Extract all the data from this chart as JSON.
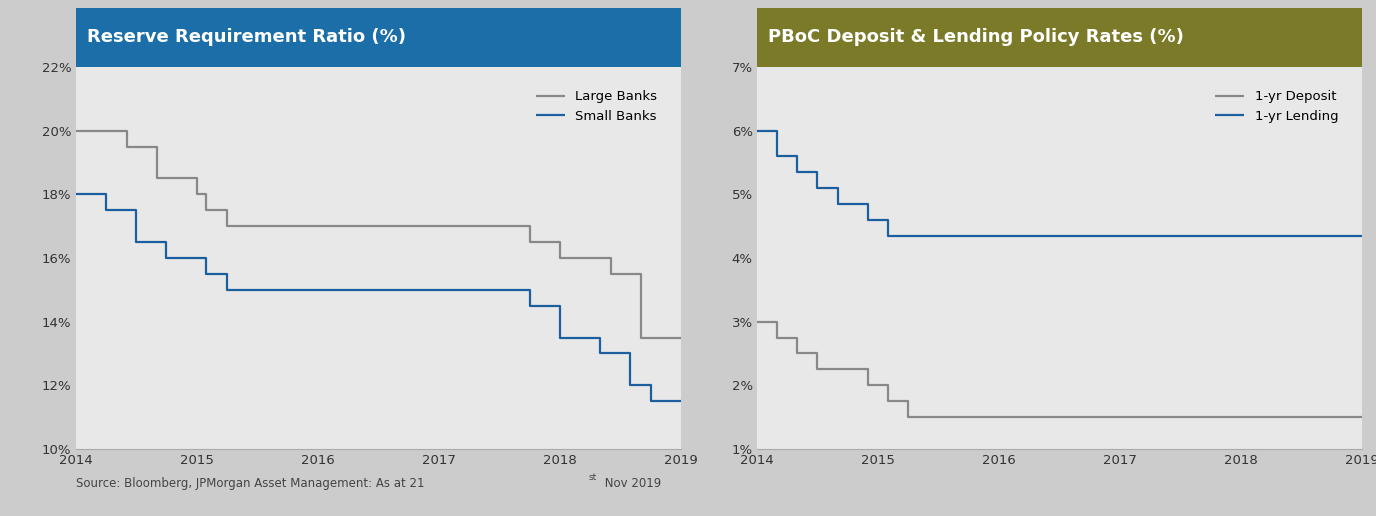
{
  "left_title": "Reserve Requirement Ratio (%)",
  "right_title": "PBoC Deposit & Lending Policy Rates (%)",
  "left_title_bg": "#1b6ea8",
  "right_title_bg": "#7a7a28",
  "title_text_color": "#ffffff",
  "plot_bg": "#e8e8e8",
  "fig_bg": "#cccccc",
  "source_text": "Source: Bloomberg, JPMorgan Asset Management: As at 21",
  "source_superscript": "st",
  "source_end": " Nov 2019",
  "large_banks_x": [
    2014.0,
    2014.42,
    2014.42,
    2014.67,
    2014.67,
    2015.0,
    2015.0,
    2015.08,
    2015.08,
    2015.25,
    2015.25,
    2015.5,
    2015.5,
    2017.75,
    2017.75,
    2018.0,
    2018.0,
    2018.42,
    2018.42,
    2018.67,
    2018.67,
    2019.08
  ],
  "large_banks_y": [
    20.0,
    20.0,
    19.5,
    19.5,
    18.5,
    18.5,
    18.0,
    18.0,
    17.5,
    17.5,
    17.0,
    17.0,
    17.0,
    17.0,
    16.5,
    16.5,
    16.0,
    16.0,
    15.5,
    15.5,
    13.5,
    13.5
  ],
  "small_banks_x": [
    2014.0,
    2014.25,
    2014.25,
    2014.5,
    2014.5,
    2014.75,
    2014.75,
    2015.08,
    2015.08,
    2015.25,
    2015.25,
    2015.5,
    2015.5,
    2017.75,
    2017.75,
    2018.0,
    2018.0,
    2018.33,
    2018.33,
    2018.58,
    2018.58,
    2018.75,
    2018.75,
    2018.92,
    2018.92,
    2019.08
  ],
  "small_banks_y": [
    18.0,
    18.0,
    17.5,
    17.5,
    16.5,
    16.5,
    16.0,
    16.0,
    15.5,
    15.5,
    15.0,
    15.0,
    15.0,
    15.0,
    14.5,
    14.5,
    13.5,
    13.5,
    13.0,
    13.0,
    12.0,
    12.0,
    11.5,
    11.5,
    11.5,
    11.5
  ],
  "deposit_x": [
    2014.0,
    2014.17,
    2014.17,
    2014.33,
    2014.33,
    2014.5,
    2014.5,
    2014.92,
    2014.92,
    2015.08,
    2015.08,
    2015.25,
    2015.25,
    2015.42,
    2015.42,
    2019.08
  ],
  "deposit_y": [
    3.0,
    3.0,
    2.75,
    2.75,
    2.5,
    2.5,
    2.25,
    2.25,
    2.0,
    2.0,
    1.75,
    1.75,
    1.5,
    1.5,
    1.5,
    1.5
  ],
  "lending_x": [
    2014.0,
    2014.17,
    2014.17,
    2014.33,
    2014.33,
    2014.5,
    2014.5,
    2014.67,
    2014.67,
    2014.92,
    2014.92,
    2015.08,
    2015.08,
    2015.25,
    2015.25,
    2015.42,
    2015.42,
    2019.08
  ],
  "lending_y": [
    6.0,
    6.0,
    5.6,
    5.6,
    5.35,
    5.35,
    5.1,
    5.1,
    4.85,
    4.85,
    4.6,
    4.6,
    4.35,
    4.35,
    4.35,
    4.35,
    4.35,
    4.35
  ],
  "large_banks_color": "#888888",
  "small_banks_color": "#1b5f9e",
  "deposit_color": "#888888",
  "lending_color": "#1b5f9e",
  "left_ylim": [
    10,
    22
  ],
  "left_yticks": [
    10,
    12,
    14,
    16,
    18,
    20,
    22
  ],
  "left_yticklabels": [
    "10%",
    "12%",
    "14%",
    "16%",
    "18%",
    "20%",
    "22%"
  ],
  "right_ylim": [
    1,
    7
  ],
  "right_yticks": [
    1,
    2,
    3,
    4,
    5,
    6,
    7
  ],
  "right_yticklabels": [
    "1%",
    "2%",
    "3%",
    "4%",
    "5%",
    "6%",
    "7%"
  ],
  "xlim": [
    2014,
    2019
  ],
  "xticks": [
    2014,
    2015,
    2016,
    2017,
    2018,
    2019
  ],
  "xticklabels": [
    "2014",
    "2015",
    "2016",
    "2017",
    "2018",
    "2019"
  ]
}
